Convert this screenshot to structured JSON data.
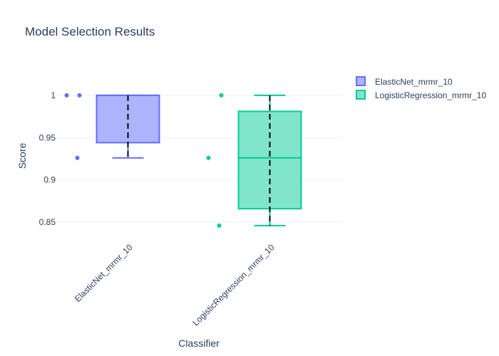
{
  "chart_data": {
    "type": "box",
    "title": "Model Selection Results",
    "xlabel": "Classifier",
    "ylabel": "Score",
    "ylim": [
      0.8265,
      1.0285
    ],
    "yticks": [
      0.85,
      0.9,
      0.95,
      1
    ],
    "ytick_labels": [
      "0.85",
      "0.9",
      "0.95",
      "1"
    ],
    "grid": true,
    "legend_position": "top-right",
    "categories": [
      "ElasticNet_mrmr_10",
      "LogisticRegression_mrmr_10"
    ],
    "series": [
      {
        "name": "ElasticNet_mrmr_10",
        "color": "#636efa",
        "fill": "#aeb4fc",
        "q1": 0.944,
        "median": 1.0,
        "q3": 1.0,
        "mean": 0.97,
        "whisker_low": 0.926,
        "whisker_high": 1.0,
        "points": [
          1.0,
          1.0,
          0.926
        ]
      },
      {
        "name": "LogisticRegression_mrmr_10",
        "color": "#00cc96",
        "fill": "#80e5cb",
        "q1": 0.866,
        "median": 0.926,
        "q3": 0.981,
        "mean": 0.926,
        "whisker_low": 0.846,
        "whisker_high": 1.0,
        "points": [
          1.0,
          0.926,
          0.846
        ]
      }
    ]
  }
}
